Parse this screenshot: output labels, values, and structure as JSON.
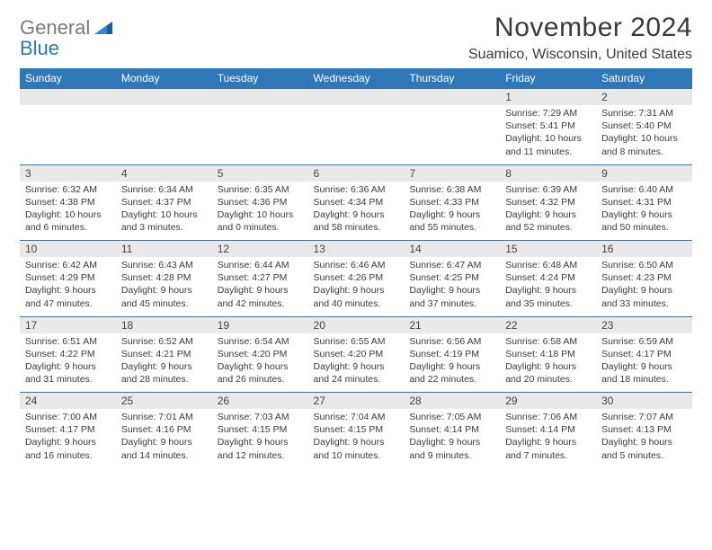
{
  "logo": {
    "text1": "General",
    "text2": "Blue"
  },
  "title": {
    "month": "November 2024",
    "location": "Suamico, Wisconsin, United States"
  },
  "colors": {
    "header_bg": "#2e77b8",
    "daynum_bg": "#e9e9e9",
    "text": "#3a3a3a",
    "logo_gray": "#7a7a7a"
  },
  "day_headers": [
    "Sunday",
    "Monday",
    "Tuesday",
    "Wednesday",
    "Thursday",
    "Friday",
    "Saturday"
  ],
  "weeks": [
    [
      null,
      null,
      null,
      null,
      null,
      {
        "n": "1",
        "sr": "Sunrise: 7:29 AM",
        "ss": "Sunset: 5:41 PM",
        "dl": "Daylight: 10 hours and 11 minutes."
      },
      {
        "n": "2",
        "sr": "Sunrise: 7:31 AM",
        "ss": "Sunset: 5:40 PM",
        "dl": "Daylight: 10 hours and 8 minutes."
      }
    ],
    [
      {
        "n": "3",
        "sr": "Sunrise: 6:32 AM",
        "ss": "Sunset: 4:38 PM",
        "dl": "Daylight: 10 hours and 6 minutes."
      },
      {
        "n": "4",
        "sr": "Sunrise: 6:34 AM",
        "ss": "Sunset: 4:37 PM",
        "dl": "Daylight: 10 hours and 3 minutes."
      },
      {
        "n": "5",
        "sr": "Sunrise: 6:35 AM",
        "ss": "Sunset: 4:36 PM",
        "dl": "Daylight: 10 hours and 0 minutes."
      },
      {
        "n": "6",
        "sr": "Sunrise: 6:36 AM",
        "ss": "Sunset: 4:34 PM",
        "dl": "Daylight: 9 hours and 58 minutes."
      },
      {
        "n": "7",
        "sr": "Sunrise: 6:38 AM",
        "ss": "Sunset: 4:33 PM",
        "dl": "Daylight: 9 hours and 55 minutes."
      },
      {
        "n": "8",
        "sr": "Sunrise: 6:39 AM",
        "ss": "Sunset: 4:32 PM",
        "dl": "Daylight: 9 hours and 52 minutes."
      },
      {
        "n": "9",
        "sr": "Sunrise: 6:40 AM",
        "ss": "Sunset: 4:31 PM",
        "dl": "Daylight: 9 hours and 50 minutes."
      }
    ],
    [
      {
        "n": "10",
        "sr": "Sunrise: 6:42 AM",
        "ss": "Sunset: 4:29 PM",
        "dl": "Daylight: 9 hours and 47 minutes."
      },
      {
        "n": "11",
        "sr": "Sunrise: 6:43 AM",
        "ss": "Sunset: 4:28 PM",
        "dl": "Daylight: 9 hours and 45 minutes."
      },
      {
        "n": "12",
        "sr": "Sunrise: 6:44 AM",
        "ss": "Sunset: 4:27 PM",
        "dl": "Daylight: 9 hours and 42 minutes."
      },
      {
        "n": "13",
        "sr": "Sunrise: 6:46 AM",
        "ss": "Sunset: 4:26 PM",
        "dl": "Daylight: 9 hours and 40 minutes."
      },
      {
        "n": "14",
        "sr": "Sunrise: 6:47 AM",
        "ss": "Sunset: 4:25 PM",
        "dl": "Daylight: 9 hours and 37 minutes."
      },
      {
        "n": "15",
        "sr": "Sunrise: 6:48 AM",
        "ss": "Sunset: 4:24 PM",
        "dl": "Daylight: 9 hours and 35 minutes."
      },
      {
        "n": "16",
        "sr": "Sunrise: 6:50 AM",
        "ss": "Sunset: 4:23 PM",
        "dl": "Daylight: 9 hours and 33 minutes."
      }
    ],
    [
      {
        "n": "17",
        "sr": "Sunrise: 6:51 AM",
        "ss": "Sunset: 4:22 PM",
        "dl": "Daylight: 9 hours and 31 minutes."
      },
      {
        "n": "18",
        "sr": "Sunrise: 6:52 AM",
        "ss": "Sunset: 4:21 PM",
        "dl": "Daylight: 9 hours and 28 minutes."
      },
      {
        "n": "19",
        "sr": "Sunrise: 6:54 AM",
        "ss": "Sunset: 4:20 PM",
        "dl": "Daylight: 9 hours and 26 minutes."
      },
      {
        "n": "20",
        "sr": "Sunrise: 6:55 AM",
        "ss": "Sunset: 4:20 PM",
        "dl": "Daylight: 9 hours and 24 minutes."
      },
      {
        "n": "21",
        "sr": "Sunrise: 6:56 AM",
        "ss": "Sunset: 4:19 PM",
        "dl": "Daylight: 9 hours and 22 minutes."
      },
      {
        "n": "22",
        "sr": "Sunrise: 6:58 AM",
        "ss": "Sunset: 4:18 PM",
        "dl": "Daylight: 9 hours and 20 minutes."
      },
      {
        "n": "23",
        "sr": "Sunrise: 6:59 AM",
        "ss": "Sunset: 4:17 PM",
        "dl": "Daylight: 9 hours and 18 minutes."
      }
    ],
    [
      {
        "n": "24",
        "sr": "Sunrise: 7:00 AM",
        "ss": "Sunset: 4:17 PM",
        "dl": "Daylight: 9 hours and 16 minutes."
      },
      {
        "n": "25",
        "sr": "Sunrise: 7:01 AM",
        "ss": "Sunset: 4:16 PM",
        "dl": "Daylight: 9 hours and 14 minutes."
      },
      {
        "n": "26",
        "sr": "Sunrise: 7:03 AM",
        "ss": "Sunset: 4:15 PM",
        "dl": "Daylight: 9 hours and 12 minutes."
      },
      {
        "n": "27",
        "sr": "Sunrise: 7:04 AM",
        "ss": "Sunset: 4:15 PM",
        "dl": "Daylight: 9 hours and 10 minutes."
      },
      {
        "n": "28",
        "sr": "Sunrise: 7:05 AM",
        "ss": "Sunset: 4:14 PM",
        "dl": "Daylight: 9 hours and 9 minutes."
      },
      {
        "n": "29",
        "sr": "Sunrise: 7:06 AM",
        "ss": "Sunset: 4:14 PM",
        "dl": "Daylight: 9 hours and 7 minutes."
      },
      {
        "n": "30",
        "sr": "Sunrise: 7:07 AM",
        "ss": "Sunset: 4:13 PM",
        "dl": "Daylight: 9 hours and 5 minutes."
      }
    ]
  ]
}
